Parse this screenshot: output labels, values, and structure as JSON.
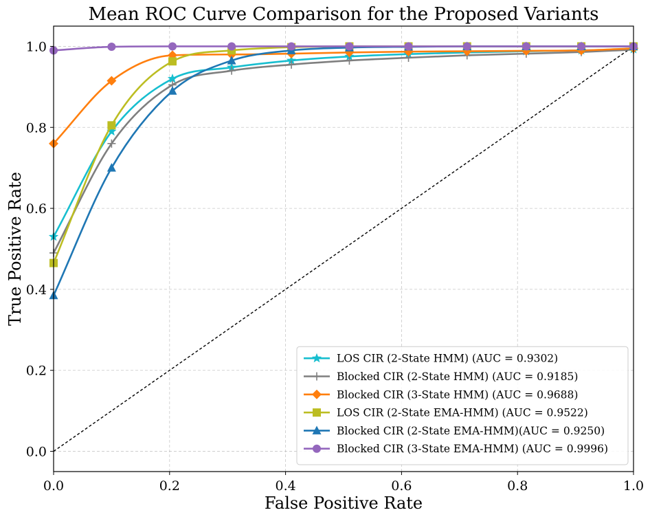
{
  "chart_data": {
    "type": "line",
    "title": "Mean ROC Curve Comparison for the Proposed Variants",
    "xlabel": "False Positive Rate",
    "ylabel": "True Positive Rate",
    "xlim": [
      0.0,
      1.0
    ],
    "ylim": [
      -0.05,
      1.05
    ],
    "xticks": [
      "0.0",
      "0.2",
      "0.4",
      "0.6",
      "0.8",
      "1.0"
    ],
    "yticks": [
      "0.0",
      "0.2",
      "0.4",
      "0.6",
      "0.8",
      "1.0"
    ],
    "grid": true,
    "legend_position": "lower-right",
    "diagonal": {
      "name": "chance-line",
      "color": "#000000",
      "x": [
        0,
        1
      ],
      "y": [
        0,
        1
      ]
    },
    "series": [
      {
        "name": "LOS CIR (2-State HMM) (AUC = 0.9302)",
        "color": "#17becf",
        "marker": "star",
        "x": [
          0.0,
          0.1,
          0.205,
          0.307,
          0.41,
          0.51,
          0.612,
          0.713,
          0.815,
          0.91,
          1.0
        ],
        "y": [
          0.53,
          0.79,
          0.92,
          0.948,
          0.965,
          0.975,
          0.981,
          0.985,
          0.988,
          0.99,
          0.993
        ]
      },
      {
        "name": "Blocked CIR (2-State HMM) (AUC = 0.9185)",
        "color": "#7f7f7f",
        "marker": "plus",
        "x": [
          0.0,
          0.1,
          0.205,
          0.307,
          0.41,
          0.51,
          0.612,
          0.713,
          0.815,
          0.91,
          1.0
        ],
        "y": [
          0.49,
          0.76,
          0.905,
          0.94,
          0.955,
          0.965,
          0.972,
          0.978,
          0.982,
          0.986,
          0.992
        ]
      },
      {
        "name": "Blocked CIR (3-State HMM) (AUC = 0.9688)",
        "color": "#ff7f0e",
        "marker": "diamond",
        "x": [
          0.0,
          0.1,
          0.205,
          0.307,
          0.41,
          0.51,
          0.612,
          0.713,
          0.815,
          0.91,
          1.0
        ],
        "y": [
          0.76,
          0.915,
          0.978,
          0.98,
          0.982,
          0.985,
          0.987,
          0.988,
          0.989,
          0.99,
          0.995
        ]
      },
      {
        "name": "LOS CIR (2-State EMA-HMM) (AUC = 0.9522)",
        "color": "#bcbd22",
        "marker": "square",
        "x": [
          0.0,
          0.1,
          0.205,
          0.307,
          0.41,
          0.51,
          0.612,
          0.713,
          0.815,
          0.91,
          1.0
        ],
        "y": [
          0.465,
          0.805,
          0.963,
          0.99,
          0.998,
          1.0,
          1.0,
          1.0,
          1.0,
          1.0,
          1.0
        ]
      },
      {
        "name": "Blocked CIR (2-State EMA-HMM)(AUC = 0.9250)",
        "color": "#1f77b4",
        "marker": "triangle",
        "x": [
          0.0,
          0.1,
          0.205,
          0.307,
          0.41,
          0.51,
          0.612,
          0.713,
          0.815,
          0.91,
          1.0
        ],
        "y": [
          0.385,
          0.7,
          0.89,
          0.965,
          0.99,
          0.997,
          0.999,
          1.0,
          1.0,
          1.0,
          1.0
        ]
      },
      {
        "name": "Blocked CIR (3-State EMA-HMM) (AUC = 0.9996)",
        "color": "#9467bd",
        "marker": "circle",
        "x": [
          0.0,
          0.1,
          0.205,
          0.307,
          0.41,
          0.51,
          0.612,
          0.713,
          0.815,
          0.91,
          1.0
        ],
        "y": [
          0.99,
          0.999,
          1.0,
          1.0,
          1.0,
          1.0,
          1.0,
          1.0,
          1.0,
          1.0,
          1.0
        ]
      }
    ]
  }
}
